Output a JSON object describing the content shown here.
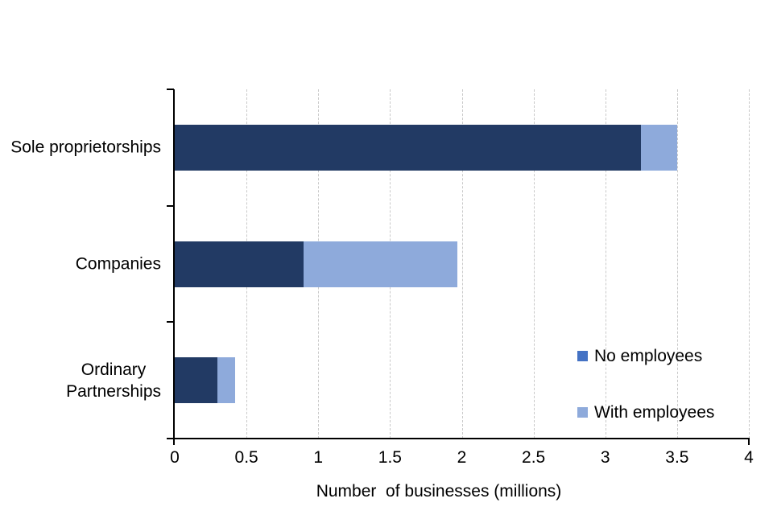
{
  "chart_data": {
    "type": "bar",
    "orientation": "horizontal",
    "stacked": true,
    "title": "",
    "xlabel": "Number  of businesses (millions)",
    "ylabel": "",
    "xlim": [
      0,
      4
    ],
    "xticks": [
      "0",
      "0.5",
      "1",
      "1.5",
      "2",
      "2.5",
      "3",
      "3.5",
      "4"
    ],
    "grid": "vertical-dashed",
    "legend_position": "inside-lower-right",
    "categories": [
      "Sole proprietorships",
      "Companies",
      "Ordinary Partnerships"
    ],
    "categories_display": [
      "Sole proprietorships",
      "Companies",
      "Ordinary\nPartnerships"
    ],
    "series": [
      {
        "name": "No employees",
        "bar_color": "#223A64",
        "legend_color": "#4472C4",
        "values": [
          3.25,
          0.9,
          0.3
        ]
      },
      {
        "name": "With employees",
        "bar_color": "#8EAADB",
        "legend_color": "#8EAADB",
        "values": [
          0.25,
          1.07,
          0.12
        ]
      }
    ],
    "stack_totals": [
      3.5,
      1.97,
      0.42
    ]
  },
  "colors": {
    "background": "#FFFFFF",
    "axis": "#000000",
    "gridline": "#C9C9C9",
    "text": "#000000"
  }
}
